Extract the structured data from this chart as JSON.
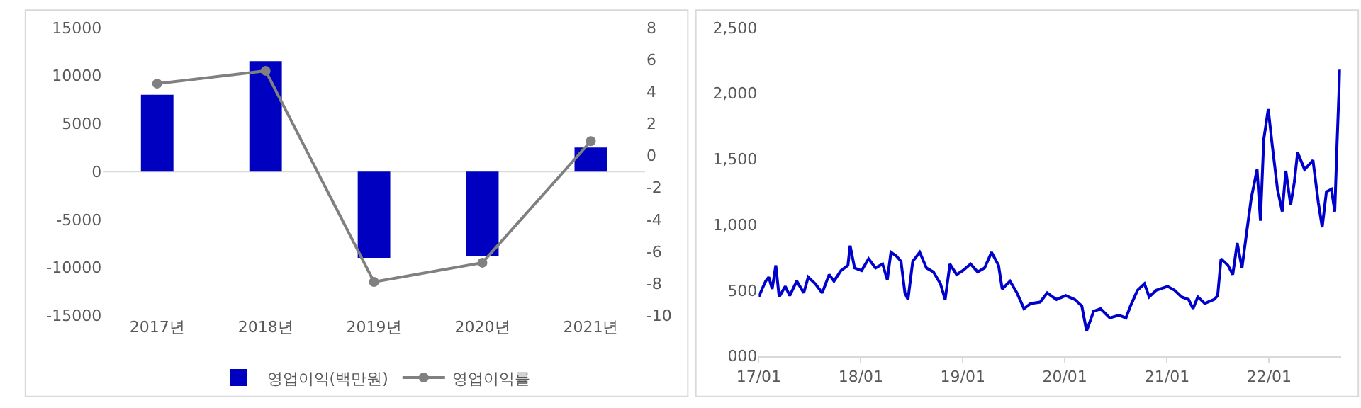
{
  "chart_data": [
    {
      "type": "bar",
      "categories": [
        "2017년",
        "2018년",
        "2019년",
        "2020년",
        "2021년"
      ],
      "series": [
        {
          "name": "영업이익(백만원)",
          "color": "#0000c0",
          "values": [
            8000,
            11500,
            -9000,
            -8800,
            2500
          ]
        },
        {
          "name": "영업이익률",
          "type": "line",
          "axis": "y2",
          "color": "#808080",
          "marker": "circle",
          "values": [
            4.5,
            5.3,
            -7.9,
            -6.7,
            0.9
          ]
        }
      ],
      "ylim": [
        -15000,
        15000
      ],
      "yticks": [
        -15000,
        -10000,
        -5000,
        0,
        5000,
        10000,
        15000
      ],
      "y2lim": [
        -10,
        8
      ],
      "y2ticks": [
        -10,
        -8,
        -6,
        -4,
        -2,
        0,
        2,
        4,
        6,
        8
      ],
      "ref_lines": [
        {
          "axis": "y",
          "value": 0,
          "color": "#d9d9d9"
        }
      ],
      "legend": "bottom",
      "grid": false
    },
    {
      "type": "line",
      "color": "#0000cc",
      "marker": "none",
      "x": [
        "2017-01-01",
        "2017-01-13",
        "2017-01-26",
        "2017-02-06",
        "2017-02-18",
        "2017-03-03",
        "2017-03-15",
        "2017-04-06",
        "2017-04-22",
        "2017-05-17",
        "2017-06-11",
        "2017-06-27",
        "2017-07-22",
        "2017-08-16",
        "2017-09-10",
        "2017-09-27",
        "2017-10-22",
        "2017-11-16",
        "2017-11-24",
        "2017-12-10",
        "2018-01-04",
        "2018-01-29",
        "2018-02-23",
        "2018-03-20",
        "2018-04-06",
        "2018-04-19",
        "2018-05-09",
        "2018-05-25",
        "2018-06-08",
        "2018-06-19",
        "2018-07-06",
        "2018-07-31",
        "2018-08-24",
        "2018-09-18",
        "2018-10-13",
        "2018-10-30",
        "2018-11-16",
        "2018-12-10",
        "2019-01-01",
        "2019-01-29",
        "2019-02-23",
        "2019-03-20",
        "2019-04-14",
        "2019-05-09",
        "2019-05-22",
        "2019-06-19",
        "2019-07-14",
        "2019-08-08",
        "2019-09-01",
        "2019-10-05",
        "2019-10-30",
        "2019-12-02",
        "2020-01-04",
        "2020-02-06",
        "2020-03-02",
        "2020-03-19",
        "2020-04-13",
        "2020-05-08",
        "2020-06-10",
        "2020-07-13",
        "2020-08-07",
        "2020-08-23",
        "2020-09-17",
        "2020-10-12",
        "2020-10-29",
        "2020-11-23",
        "2021-01-03",
        "2021-01-28",
        "2021-02-22",
        "2021-03-19",
        "2021-04-04",
        "2021-04-21",
        "2021-05-16",
        "2021-06-18",
        "2021-07-01",
        "2021-07-13",
        "2021-08-07",
        "2021-08-24",
        "2021-09-09",
        "2021-09-26",
        "2021-10-12",
        "2021-10-29",
        "2021-11-19",
        "2021-12-01",
        "2021-12-13",
        "2021-12-29",
        "2022-01-12",
        "2022-01-31",
        "2022-02-17",
        "2022-03-02",
        "2022-03-19",
        "2022-04-01",
        "2022-04-13",
        "2022-05-08",
        "2022-06-07",
        "2022-06-26",
        "2022-07-10",
        "2022-07-25",
        "2022-08-12",
        "2022-08-24",
        "2022-09-01",
        "2022-09-11"
      ],
      "values": [
        450,
        510,
        570,
        600,
        510,
        690,
        450,
        530,
        460,
        570,
        480,
        600,
        550,
        480,
        620,
        570,
        650,
        690,
        840,
        670,
        650,
        740,
        670,
        700,
        580,
        790,
        760,
        720,
        480,
        430,
        720,
        790,
        670,
        640,
        550,
        430,
        700,
        620,
        650,
        700,
        640,
        670,
        790,
        690,
        510,
        570,
        480,
        360,
        400,
        410,
        480,
        430,
        460,
        430,
        380,
        190,
        340,
        360,
        290,
        310,
        290,
        380,
        500,
        550,
        450,
        500,
        530,
        500,
        450,
        430,
        360,
        450,
        400,
        430,
        460,
        740,
        690,
        620,
        860,
        670,
        930,
        1200,
        1420,
        1030,
        1650,
        1880,
        1610,
        1270,
        1100,
        1410,
        1150,
        1320,
        1550,
        1420,
        1490,
        1170,
        980,
        1250,
        1270,
        1100,
        1610,
        2180
      ],
      "xlim": [
        "2017-01-01",
        "2022-09-15"
      ],
      "xticks": [
        {
          "value": "2017-01-01",
          "label": "17/01"
        },
        {
          "value": "2018-01-01",
          "label": "18/01"
        },
        {
          "value": "2019-01-01",
          "label": "19/01"
        },
        {
          "value": "2020-01-01",
          "label": "20/01"
        },
        {
          "value": "2021-01-01",
          "label": "21/01"
        },
        {
          "value": "2022-01-01",
          "label": "22/01"
        }
      ],
      "ylim": [
        0,
        2500
      ],
      "yticks": [
        {
          "value": 0,
          "label": "000"
        },
        500,
        {
          "value": 1000,
          "label": "1,000"
        },
        {
          "value": 1500,
          "label": "1,500"
        },
        {
          "value": 2000,
          "label": "2,000"
        },
        {
          "value": 2500,
          "label": "2,500"
        }
      ],
      "grid": false
    }
  ]
}
